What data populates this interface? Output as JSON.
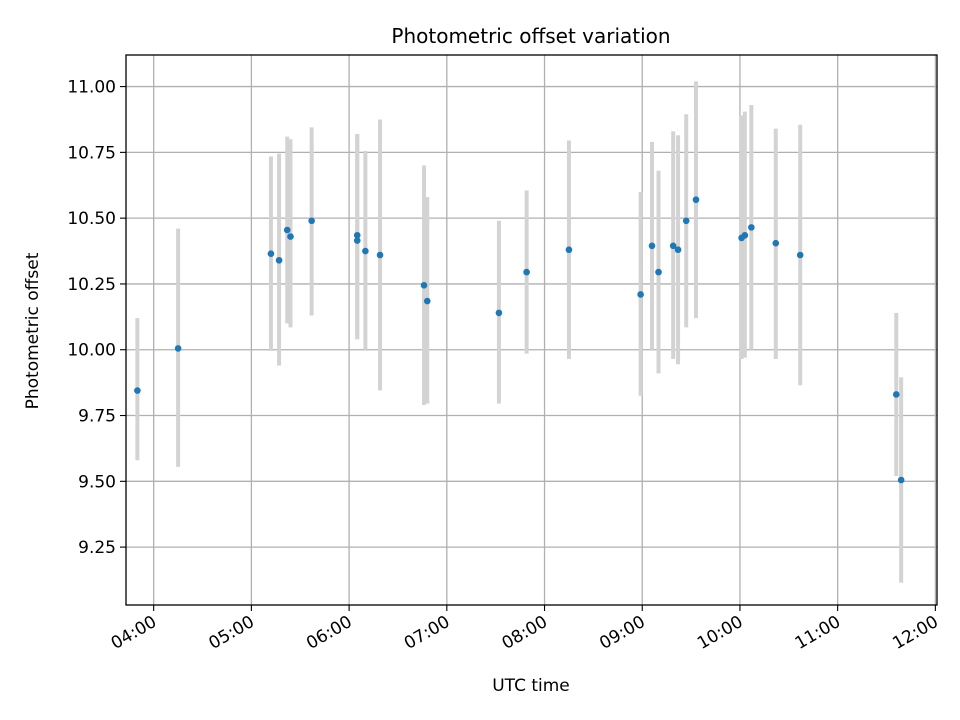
{
  "chart_data": {
    "type": "scatter",
    "title": "Photometric offset variation",
    "xlabel": "UTC time",
    "ylabel": "Photometric offset",
    "x_unit": "UTC time (HH:MM)",
    "xlim": [
      "03:43",
      "12:01"
    ],
    "ylim": [
      9.03,
      11.12
    ],
    "xticks": [
      "04:00",
      "05:00",
      "06:00",
      "07:00",
      "08:00",
      "09:00",
      "10:00",
      "11:00",
      "12:00"
    ],
    "yticks": [
      "9.25",
      "9.50",
      "9.75",
      "10.00",
      "10.25",
      "10.50",
      "10.75",
      "11.00"
    ],
    "grid": true,
    "colors": {
      "point": "#1f77b4",
      "errorbar": "#d3d3d3",
      "grid": "#b0b0b0"
    },
    "series": [
      {
        "points": [
          {
            "x": "03:50",
            "y": 9.845,
            "ylow": 9.58,
            "yhigh": 10.12
          },
          {
            "x": "04:15",
            "y": 10.005,
            "ylow": 9.555,
            "yhigh": 10.46
          },
          {
            "x": "05:12",
            "y": 10.365,
            "ylow": 9.995,
            "yhigh": 10.735
          },
          {
            "x": "05:17",
            "y": 10.34,
            "ylow": 9.94,
            "yhigh": 10.745
          },
          {
            "x": "05:22",
            "y": 10.455,
            "ylow": 10.1,
            "yhigh": 10.81
          },
          {
            "x": "05:24",
            "y": 10.43,
            "ylow": 10.085,
            "yhigh": 10.8
          },
          {
            "x": "05:37",
            "y": 10.49,
            "ylow": 10.13,
            "yhigh": 10.845
          },
          {
            "x": "06:05",
            "y": 10.435,
            "ylow": 10.04,
            "yhigh": 10.82
          },
          {
            "x": "06:05",
            "y": 10.415,
            "ylow": 10.04,
            "yhigh": 10.82
          },
          {
            "x": "06:10",
            "y": 10.375,
            "ylow": 10.0,
            "yhigh": 10.755
          },
          {
            "x": "06:19",
            "y": 10.36,
            "ylow": 9.845,
            "yhigh": 10.875
          },
          {
            "x": "06:46",
            "y": 10.245,
            "ylow": 9.79,
            "yhigh": 10.7
          },
          {
            "x": "06:48",
            "y": 10.185,
            "ylow": 9.795,
            "yhigh": 10.58
          },
          {
            "x": "07:32",
            "y": 10.14,
            "ylow": 9.795,
            "yhigh": 10.49
          },
          {
            "x": "07:49",
            "y": 10.295,
            "ylow": 9.985,
            "yhigh": 10.605
          },
          {
            "x": "08:15",
            "y": 10.38,
            "ylow": 9.965,
            "yhigh": 10.795
          },
          {
            "x": "08:59",
            "y": 10.21,
            "ylow": 9.825,
            "yhigh": 10.6
          },
          {
            "x": "09:06",
            "y": 10.395,
            "ylow": 10.0,
            "yhigh": 10.79
          },
          {
            "x": "09:10",
            "y": 10.295,
            "ylow": 9.91,
            "yhigh": 10.68
          },
          {
            "x": "09:19",
            "y": 10.395,
            "ylow": 9.965,
            "yhigh": 10.83
          },
          {
            "x": "09:22",
            "y": 10.38,
            "ylow": 9.945,
            "yhigh": 10.815
          },
          {
            "x": "09:27",
            "y": 10.49,
            "ylow": 10.085,
            "yhigh": 10.895
          },
          {
            "x": "09:33",
            "y": 10.57,
            "ylow": 10.12,
            "yhigh": 11.02
          },
          {
            "x": "10:01",
            "y": 10.425,
            "ylow": 9.965,
            "yhigh": 10.89
          },
          {
            "x": "10:03",
            "y": 10.435,
            "ylow": 9.97,
            "yhigh": 10.905
          },
          {
            "x": "10:07",
            "y": 10.465,
            "ylow": 10.0,
            "yhigh": 10.93
          },
          {
            "x": "10:22",
            "y": 10.405,
            "ylow": 9.965,
            "yhigh": 10.84
          },
          {
            "x": "10:37",
            "y": 10.36,
            "ylow": 9.865,
            "yhigh": 10.855
          },
          {
            "x": "11:36",
            "y": 9.83,
            "ylow": 9.52,
            "yhigh": 10.14
          },
          {
            "x": "11:39",
            "y": 9.505,
            "ylow": 9.115,
            "yhigh": 9.895
          }
        ]
      }
    ]
  }
}
